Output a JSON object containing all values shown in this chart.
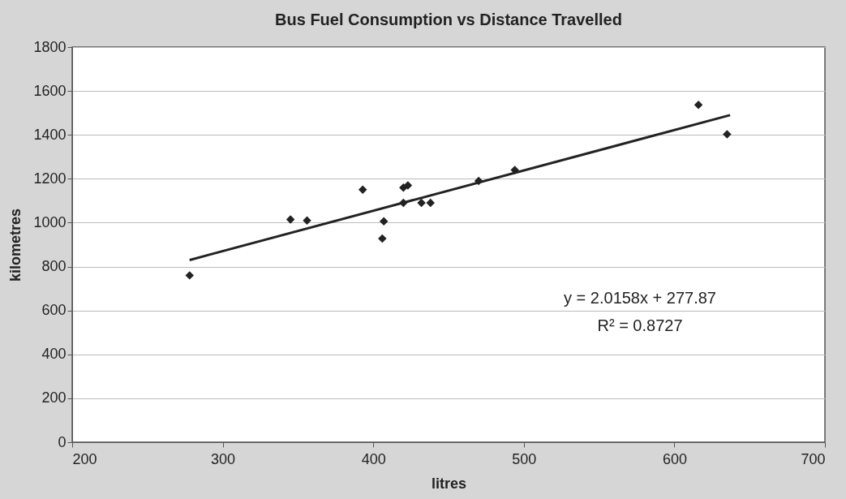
{
  "chart_data": {
    "type": "scatter",
    "title": "Bus Fuel Consumption vs Distance Travelled",
    "xlabel": "litres",
    "ylabel": "kilometres",
    "xlim": [
      200,
      700
    ],
    "xticks": [
      200,
      300,
      400,
      500,
      600,
      700
    ],
    "ylim": [
      0,
      1800
    ],
    "yticks": [
      0,
      200,
      400,
      600,
      800,
      1000,
      1200,
      1400,
      1600,
      1800
    ],
    "grid": "y",
    "annotations": [
      "y = 2.0158x + 277.87",
      "R² = 0.8727"
    ],
    "series": [
      {
        "marker": "diamond",
        "color": "#222222",
        "x": [
          278,
          345,
          356,
          393,
          406,
          407,
          420,
          420,
          423,
          432,
          438,
          470,
          494,
          616,
          635
        ],
        "values": [
          760,
          1015,
          1010,
          1150,
          928,
          1006,
          1090,
          1160,
          1170,
          1090,
          1090,
          1190,
          1240,
          1537,
          1403
        ]
      },
      {
        "type": "line",
        "color": "#222222",
        "line_style": "solid",
        "x": [
          278,
          637
        ],
        "values": [
          830,
          1490
        ]
      }
    ]
  }
}
